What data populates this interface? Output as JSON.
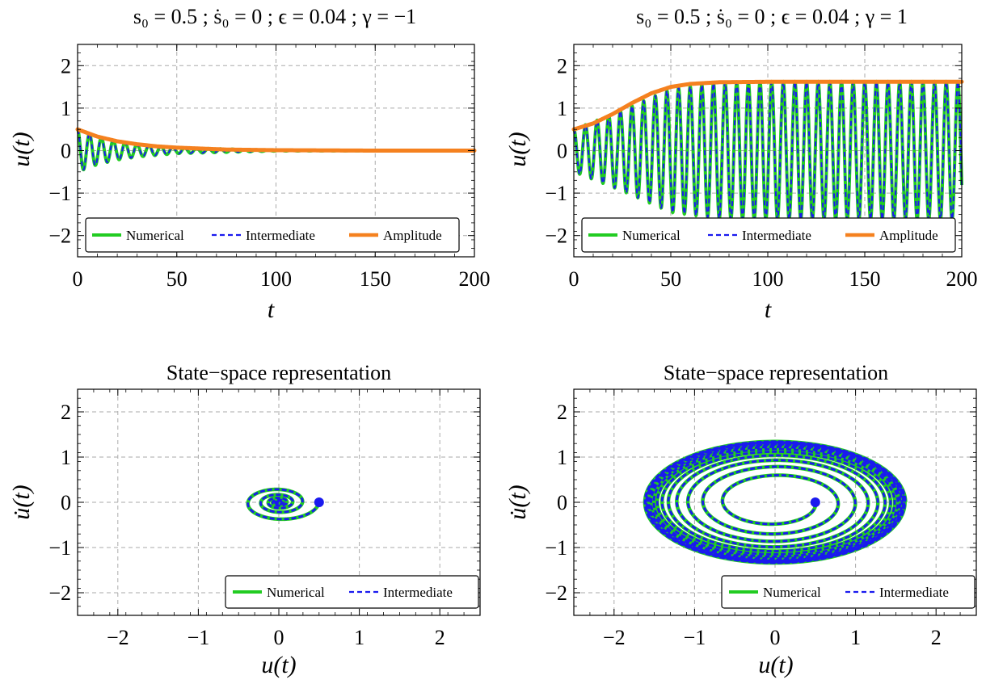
{
  "figure": {
    "panels": [
      {
        "id": "top-left",
        "title": "s₀ = 0.5 ;  ṡ₀ = 0 ;  ϵ = 0.04 ;  γ = −1",
        "xlabel": "t",
        "ylabel": "u(t)",
        "legend": [
          "Numerical",
          "Intermediate",
          "Amplitude"
        ],
        "legend_position": "bottom"
      },
      {
        "id": "top-right",
        "title": "s₀ = 0.5 ;  ṡ₀ = 0 ;  ϵ = 0.04 ;  γ = 1",
        "xlabel": "t",
        "ylabel": "u(t)",
        "legend": [
          "Numerical",
          "Intermediate",
          "Amplitude"
        ],
        "legend_position": "bottom"
      },
      {
        "id": "bottom-left",
        "title": "State−space representation",
        "xlabel": "u(t)",
        "ylabel": "u̇(t)",
        "legend": [
          "Numerical",
          "Intermediate"
        ],
        "legend_position": "bottom-right"
      },
      {
        "id": "bottom-right",
        "title": "State−space representation",
        "xlabel": "u(t)",
        "ylabel": "u̇(t)",
        "legend": [
          "Numerical",
          "Intermediate"
        ],
        "legend_position": "bottom-right"
      }
    ]
  },
  "colors": {
    "numerical": "#22cc22",
    "intermediate": "#1a1aee",
    "amplitude": "#f5811f",
    "grid": "#aaaaaa"
  },
  "chart_data": [
    {
      "type": "line",
      "panel": "top-left",
      "xlim": [
        0,
        200
      ],
      "ylim": [
        -2.5,
        2.5
      ],
      "xticks": [
        0,
        50,
        100,
        150,
        200
      ],
      "yticks": [
        -2,
        -1,
        0,
        1,
        2
      ],
      "grid": true,
      "series": [
        {
          "name": "Numerical",
          "style": "solid",
          "description_values": {
            "x": [
              0,
              10,
              20,
              30,
              50,
              100,
              200
            ],
            "envelope": [
              0.5,
              0.33,
              0.22,
              0.15,
              0.07,
              0.01,
              0.0
            ]
          }
        },
        {
          "name": "Intermediate",
          "style": "dashed",
          "description_values": {
            "x": [
              0,
              10,
              20,
              30,
              50,
              100,
              200
            ],
            "envelope": [
              0.5,
              0.33,
              0.22,
              0.15,
              0.07,
              0.01,
              0.0
            ]
          }
        },
        {
          "name": "Amplitude",
          "style": "solid",
          "x": [
            0,
            10,
            20,
            30,
            40,
            50,
            75,
            100,
            150,
            200
          ],
          "values": [
            0.5,
            0.33,
            0.22,
            0.15,
            0.1,
            0.07,
            0.025,
            0.01,
            0.0,
            0.0
          ]
        }
      ]
    },
    {
      "type": "line",
      "panel": "top-right",
      "xlim": [
        0,
        200
      ],
      "ylim": [
        -2.5,
        2.5
      ],
      "xticks": [
        0,
        50,
        100,
        150,
        200
      ],
      "yticks": [
        -2,
        -1,
        0,
        1,
        2
      ],
      "grid": true,
      "series": [
        {
          "name": "Numerical",
          "style": "solid",
          "description_values": {
            "x": [
              0,
              25,
              50,
              75,
              100,
              200
            ],
            "envelope": [
              0.5,
              0.95,
              1.45,
              1.6,
              1.62,
              1.62
            ]
          }
        },
        {
          "name": "Intermediate",
          "style": "dashed",
          "description_values": {
            "x": [
              0,
              25,
              50,
              75,
              100,
              200
            ],
            "envelope": [
              0.5,
              0.95,
              1.45,
              1.6,
              1.62,
              1.62
            ]
          }
        },
        {
          "name": "Amplitude",
          "style": "solid",
          "x": [
            0,
            10,
            20,
            30,
            40,
            50,
            60,
            75,
            100,
            150,
            200
          ],
          "values": [
            0.5,
            0.64,
            0.86,
            1.12,
            1.35,
            1.5,
            1.57,
            1.61,
            1.62,
            1.62,
            1.62
          ]
        }
      ]
    },
    {
      "type": "line",
      "panel": "bottom-left",
      "xlim": [
        -2.5,
        2.5
      ],
      "ylim": [
        -2.5,
        2.5
      ],
      "xticks": [
        -2,
        -1,
        0,
        1,
        2
      ],
      "yticks": [
        -2,
        -1,
        0,
        1,
        2
      ],
      "grid": true,
      "start_point": [
        0.5,
        0
      ],
      "series": [
        {
          "name": "Numerical",
          "style": "solid",
          "spiral": "inward",
          "outer_radius": 0.5,
          "inner_radius": 0.0
        },
        {
          "name": "Intermediate",
          "style": "dashed",
          "spiral": "inward",
          "outer_radius": 0.5,
          "inner_radius": 0.0
        }
      ]
    },
    {
      "type": "line",
      "panel": "bottom-right",
      "xlim": [
        -2.5,
        2.5
      ],
      "ylim": [
        -2.5,
        2.5
      ],
      "xticks": [
        -2,
        -1,
        0,
        1,
        2
      ],
      "yticks": [
        -2,
        -1,
        0,
        1,
        2
      ],
      "grid": true,
      "start_point": [
        0.5,
        0
      ],
      "series": [
        {
          "name": "Numerical",
          "style": "solid",
          "spiral": "outward",
          "inner_radius": 0.5,
          "outer_radius": 1.62
        },
        {
          "name": "Intermediate",
          "style": "dashed",
          "spiral": "outward",
          "inner_radius": 0.5,
          "outer_radius": 1.62
        }
      ]
    }
  ]
}
